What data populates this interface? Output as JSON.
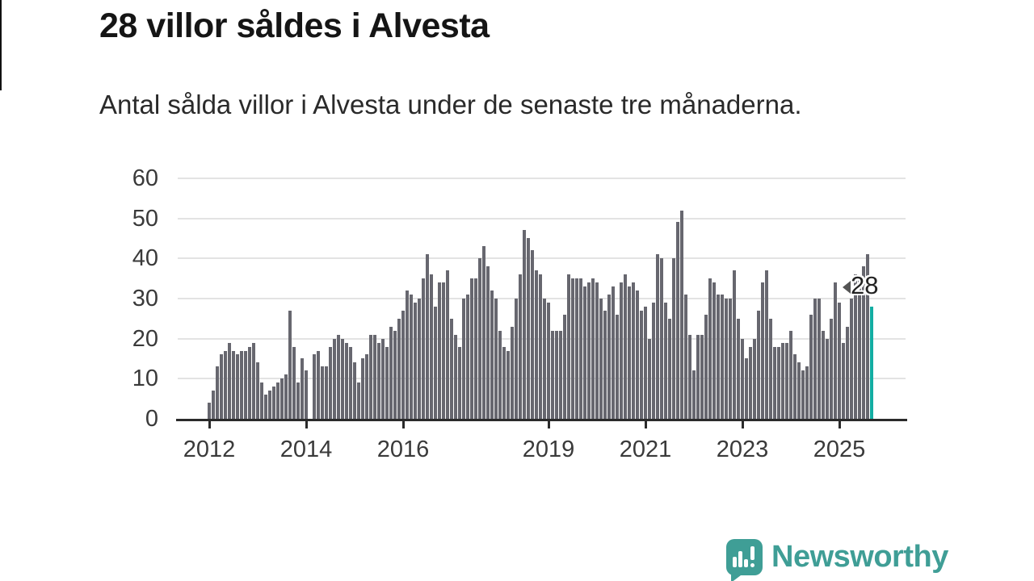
{
  "header": {
    "title": "28 villor såldes i Alvesta",
    "subtitle": "Antal sålda villor i Alvesta under de senaste tre månaderna."
  },
  "chart_data": {
    "type": "bar",
    "title": "28 villor såldes i Alvesta",
    "subtitle": "Antal sålda villor i Alvesta under de senaste tre månaderna.",
    "x_unit": "month",
    "x_start": "2012-01",
    "x_end": "2025-09",
    "x_interval_months": 1,
    "values": [
      4,
      7,
      13,
      16,
      17,
      19,
      17,
      16,
      17,
      17,
      18,
      19,
      14,
      9,
      6,
      7,
      8,
      9,
      10,
      11,
      27,
      18,
      9,
      15,
      12,
      0,
      16,
      17,
      13,
      13,
      18,
      20,
      21,
      20,
      19,
      18,
      14,
      9,
      15,
      16,
      21,
      21,
      19,
      20,
      18,
      23,
      22,
      25,
      27,
      32,
      31,
      29,
      30,
      35,
      41,
      36,
      28,
      34,
      34,
      37,
      25,
      21,
      18,
      30,
      31,
      35,
      35,
      40,
      43,
      38,
      32,
      30,
      22,
      18,
      17,
      23,
      30,
      36,
      47,
      45,
      42,
      37,
      36,
      30,
      29,
      22,
      22,
      22,
      26,
      36,
      35,
      35,
      35,
      33,
      34,
      35,
      34,
      30,
      27,
      31,
      33,
      26,
      34,
      36,
      33,
      34,
      32,
      27,
      28,
      20,
      29,
      41,
      40,
      29,
      25,
      40,
      49,
      52,
      31,
      21,
      12,
      21,
      21,
      26,
      35,
      34,
      31,
      31,
      30,
      30,
      37,
      25,
      20,
      15,
      18,
      20,
      27,
      34,
      37,
      25,
      18,
      18,
      19,
      19,
      22,
      16,
      14,
      12,
      13,
      26,
      30,
      30,
      22,
      20,
      25,
      34,
      29,
      19,
      23,
      30,
      36,
      35,
      38,
      41,
      28
    ],
    "highlight": {
      "index": 164,
      "value": 28,
      "label": "28",
      "color": "#12ada2"
    },
    "bar_color": "#67676f",
    "grid": true,
    "grid_color": "#e3e3e3",
    "axis_color": "#2b2b2b",
    "y_ticks": [
      0,
      10,
      20,
      30,
      40,
      50,
      60
    ],
    "ylim": [
      0,
      62
    ],
    "x_tick_labels": [
      "2012",
      "2014",
      "2016",
      "2019",
      "2021",
      "2023",
      "2025"
    ],
    "x_tick_month_index": [
      0,
      24,
      48,
      84,
      108,
      132,
      156
    ],
    "ylabel": "",
    "xlabel": ""
  },
  "branding": {
    "logo_text": "Newsworthy",
    "logo_color": "#3f9e96",
    "logo_icon": "speech-bubble-bar-chart-icon"
  }
}
